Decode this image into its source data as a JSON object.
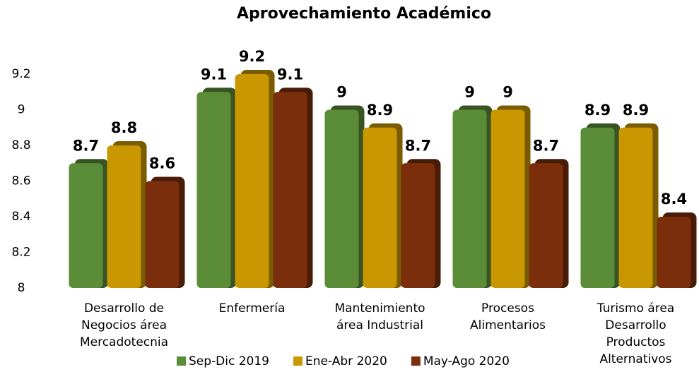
{
  "chart_data": {
    "type": "bar",
    "title": "Aprovechamiento Académico",
    "categories": [
      "Desarrollo de\nNegocios área\nMercadotecnia",
      "Enfermería",
      "Mantenimiento\nárea Industrial",
      "Procesos\nAlimentarios",
      "Turismo área\nDesarrollo\nProductos\nAlternativos"
    ],
    "series": [
      {
        "name": "Sep-Dic 2019",
        "color": "#5b8c38",
        "values": [
          8.7,
          9.1,
          9,
          9,
          8.9
        ]
      },
      {
        "name": "Ene-Abr 2020",
        "color": "#c99700",
        "values": [
          8.8,
          9.2,
          8.9,
          9,
          8.9
        ]
      },
      {
        "name": "May-Ago 2020",
        "color": "#7a2e0c",
        "values": [
          8.6,
          9.1,
          8.7,
          8.7,
          8.4
        ]
      }
    ],
    "ylim": [
      8,
      9.2
    ],
    "yticks": [
      8,
      8.2,
      8.4,
      8.6,
      8.8,
      9,
      9.2
    ],
    "grid": false
  }
}
